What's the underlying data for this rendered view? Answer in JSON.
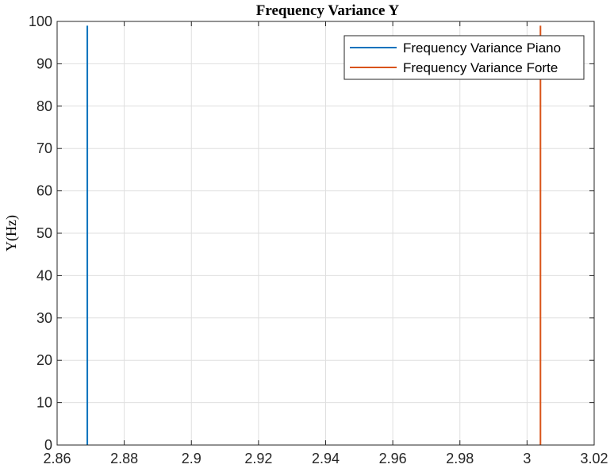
{
  "chart_data": {
    "type": "line",
    "title": "Frequency Variance Y",
    "xlabel": "",
    "ylabel": "Y(Hz)",
    "xlim": [
      2.86,
      3.02
    ],
    "ylim": [
      0,
      100
    ],
    "xticks": [
      2.86,
      2.88,
      2.9,
      2.92,
      2.94,
      2.96,
      2.98,
      3.0,
      3.02
    ],
    "xtick_labels": [
      "2.86",
      "2.88",
      "2.9",
      "2.92",
      "2.94",
      "2.96",
      "2.98",
      "3",
      "3.02"
    ],
    "yticks": [
      0,
      10,
      20,
      30,
      40,
      50,
      60,
      70,
      80,
      90,
      100
    ],
    "ytick_labels": [
      "0",
      "10",
      "20",
      "30",
      "40",
      "50",
      "60",
      "70",
      "80",
      "90",
      "100"
    ],
    "grid": true,
    "legend_position": "top-right",
    "series": [
      {
        "name": "Frequency Variance Piano",
        "color": "#0072BD",
        "x": [
          2.869,
          2.869
        ],
        "y": [
          0,
          99
        ]
      },
      {
        "name": "Frequency Variance Forte",
        "color": "#D95319",
        "x": [
          3.004,
          3.004
        ],
        "y": [
          0,
          99
        ]
      }
    ]
  }
}
